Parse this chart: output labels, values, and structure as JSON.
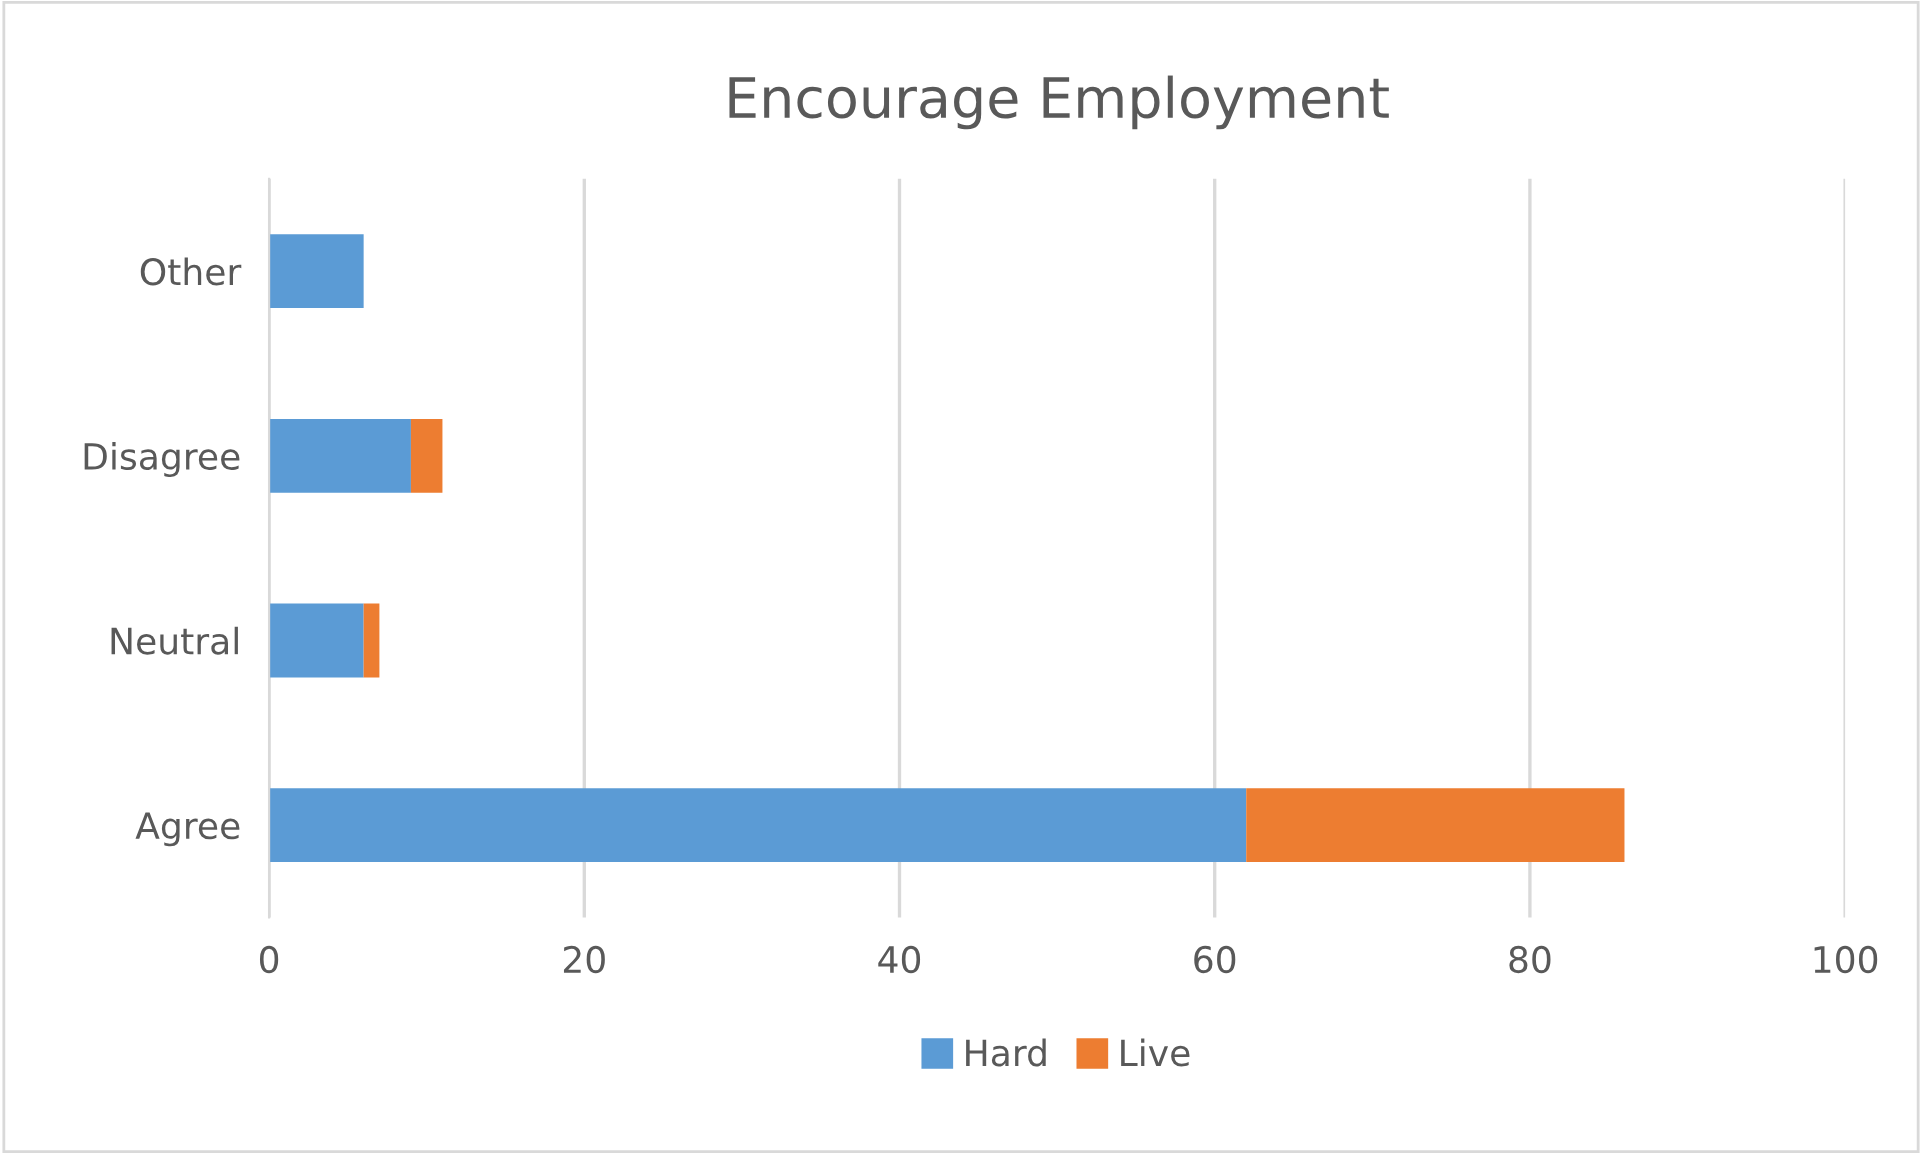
{
  "chart_data": {
    "type": "bar",
    "orientation": "horizontal",
    "stacked": true,
    "title": "Encourage Employment",
    "categories": [
      "Other",
      "Disagree",
      "Neutral",
      "Agree"
    ],
    "series": [
      {
        "name": "Hard",
        "color": "#5b9bd5",
        "values": [
          6,
          9,
          6,
          62
        ]
      },
      {
        "name": "Live",
        "color": "#ed7d31",
        "values": [
          0,
          2,
          1,
          24
        ]
      }
    ],
    "xlim": [
      0,
      100
    ],
    "xticks": [
      0,
      20,
      40,
      60,
      80,
      100
    ],
    "grid": "x",
    "legend": "bottom"
  }
}
